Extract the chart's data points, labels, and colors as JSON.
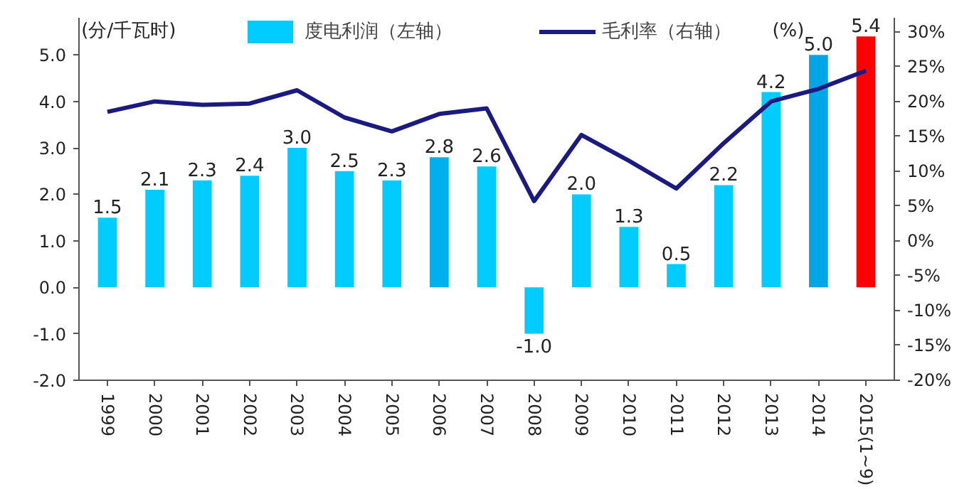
{
  "chart_data": {
    "type": "bar",
    "categories": [
      "1999",
      "2000",
      "2001",
      "2002",
      "2003",
      "2004",
      "2005",
      "2006",
      "2007",
      "2008",
      "2009",
      "2010",
      "2011",
      "2012",
      "2013",
      "2014",
      "2015(1~9)"
    ],
    "series": [
      {
        "name": "度电利润（左轴）",
        "color": "#00ccff",
        "colors": [
          "#00ccff",
          "#00ccff",
          "#00ccff",
          "#00ccff",
          "#00ccff",
          "#00ccff",
          "#00ccff",
          "#00b0ee",
          "#00ccff",
          "#00ccff",
          "#00ccff",
          "#00ccff",
          "#00ccff",
          "#00ccff",
          "#00ccff",
          "#00a6e6",
          "#ff0000"
        ],
        "values": [
          1.5,
          2.1,
          2.3,
          2.4,
          3.0,
          2.5,
          2.3,
          2.8,
          2.6,
          -1.0,
          2.0,
          1.3,
          0.5,
          2.2,
          4.2,
          5.0,
          5.4
        ],
        "value_labels": [
          "1.5",
          "2.1",
          "2.3",
          "2.4",
          "3.0",
          "2.5",
          "2.3",
          "2.8",
          "2.6",
          "-1.0",
          "2.0",
          "1.3",
          "0.5",
          "2.2",
          "4.2",
          "5.0",
          "5.4"
        ]
      },
      {
        "name": "毛利率（右轴）",
        "type": "line",
        "axis": "y2",
        "color": "#1a1a80",
        "values": [
          18.5,
          20,
          19.5,
          19.7,
          21.6,
          17.7,
          15.7,
          18.2,
          19,
          5.7,
          15.2,
          11.5,
          7.5,
          14,
          20,
          21.8,
          24.4
        ]
      }
    ],
    "annotations": [
      "(分/千瓦时)",
      "(%)"
    ],
    "ylim": [
      -2,
      5.8
    ],
    "yticks": [
      {
        "value": -2,
        "label": "-2.0"
      },
      {
        "value": -1,
        "label": "-1.0"
      },
      {
        "value": 0,
        "label": "0.0"
      },
      {
        "value": 1,
        "label": "1.0"
      },
      {
        "value": 2,
        "label": "2.0"
      },
      {
        "value": 3,
        "label": "3.0"
      },
      {
        "value": 4,
        "label": "4.0"
      },
      {
        "value": 5,
        "label": "5.0"
      }
    ],
    "y2lim": [
      -20,
      32
    ],
    "y2ticks": [
      {
        "value": -20,
        "label": "-20%"
      },
      {
        "value": -15,
        "label": "-15%"
      },
      {
        "value": -10,
        "label": "-10%"
      },
      {
        "value": -5,
        "label": "-5%"
      },
      {
        "value": 0,
        "label": "0%"
      },
      {
        "value": 5,
        "label": "5%"
      },
      {
        "value": 10,
        "label": "10%"
      },
      {
        "value": 15,
        "label": "15%"
      },
      {
        "value": 20,
        "label": "20%"
      },
      {
        "value": 25,
        "label": "25%"
      },
      {
        "value": 30,
        "label": "30%"
      }
    ],
    "grid": false,
    "legend": "top"
  }
}
